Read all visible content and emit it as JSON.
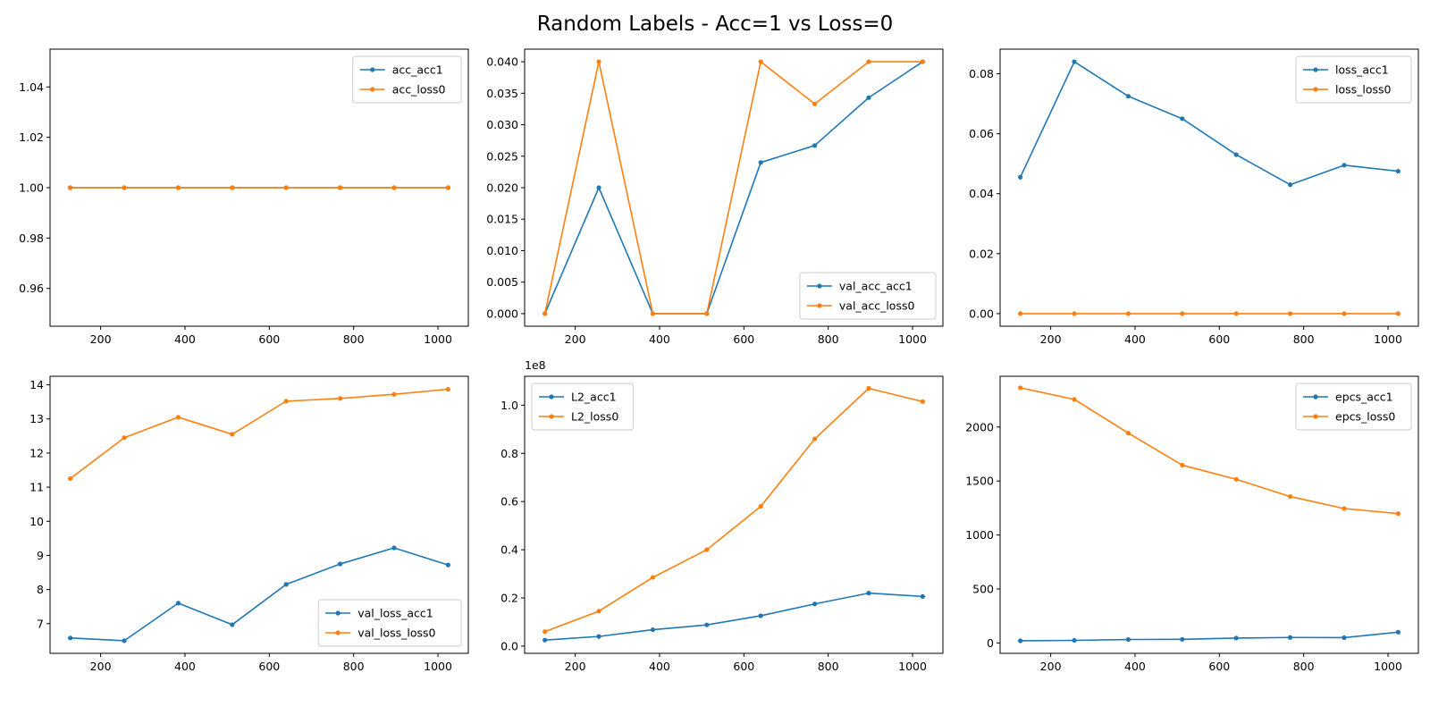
{
  "figure": {
    "title": "Random Labels - Acc=1 vs Loss=0"
  },
  "colors": {
    "acc1": "#1f77b4",
    "loss0": "#ff7f0e",
    "axes": "#000000",
    "legend_border": "#cccccc"
  },
  "chart_data": [
    {
      "id": "acc",
      "type": "line",
      "x": [
        128,
        256,
        384,
        512,
        640,
        768,
        896,
        1024
      ],
      "xlim": [
        80,
        1072
      ],
      "xticks": [
        200,
        400,
        600,
        800,
        1000
      ],
      "xtick_labels": [
        "200",
        "400",
        "600",
        "800",
        "1000"
      ],
      "ylim": [
        0.945,
        1.055
      ],
      "yticks": [
        0.96,
        0.98,
        1.0,
        1.02,
        1.04
      ],
      "ytick_labels": [
        "0.96",
        "0.98",
        "1.00",
        "1.02",
        "1.04"
      ],
      "offset_text": "",
      "legend_position": "top-right",
      "grid": false,
      "series": [
        {
          "name": "acc_acc1",
          "color_key": "acc1",
          "values": [
            1,
            1,
            1,
            1,
            1,
            1,
            1,
            1
          ]
        },
        {
          "name": "acc_loss0",
          "color_key": "loss0",
          "values": [
            1,
            1,
            1,
            1,
            1,
            1,
            1,
            1
          ]
        }
      ]
    },
    {
      "id": "val_acc",
      "type": "line",
      "x": [
        128,
        256,
        384,
        512,
        640,
        768,
        896,
        1024
      ],
      "xlim": [
        80,
        1072
      ],
      "xticks": [
        200,
        400,
        600,
        800,
        1000
      ],
      "xtick_labels": [
        "200",
        "400",
        "600",
        "800",
        "1000"
      ],
      "ylim": [
        -0.002,
        0.042
      ],
      "yticks": [
        0,
        0.005,
        0.01,
        0.015,
        0.02,
        0.025,
        0.03,
        0.035,
        0.04
      ],
      "ytick_labels": [
        "0.000",
        "0.005",
        "0.010",
        "0.015",
        "0.020",
        "0.025",
        "0.030",
        "0.035",
        "0.040"
      ],
      "offset_text": "",
      "legend_position": "bottom-right",
      "grid": false,
      "series": [
        {
          "name": "val_acc_acc1",
          "color_key": "acc1",
          "values": [
            0,
            0.02,
            0,
            0,
            0.024,
            0.0267,
            0.0343,
            0.04
          ]
        },
        {
          "name": "val_acc_loss0",
          "color_key": "loss0",
          "values": [
            0,
            0.04,
            0,
            0,
            0.04,
            0.0333,
            0.04,
            0.04
          ]
        }
      ]
    },
    {
      "id": "loss",
      "type": "line",
      "x": [
        128,
        256,
        384,
        512,
        640,
        768,
        896,
        1024
      ],
      "xlim": [
        80,
        1072
      ],
      "xticks": [
        200,
        400,
        600,
        800,
        1000
      ],
      "xtick_labels": [
        "200",
        "400",
        "600",
        "800",
        "1000"
      ],
      "ylim": [
        -0.0042,
        0.0882
      ],
      "yticks": [
        0,
        0.02,
        0.04,
        0.06,
        0.08
      ],
      "ytick_labels": [
        "0.00",
        "0.02",
        "0.04",
        "0.06",
        "0.08"
      ],
      "offset_text": "",
      "legend_position": "top-right",
      "grid": false,
      "series": [
        {
          "name": "loss_acc1",
          "color_key": "acc1",
          "values": [
            0.0455,
            0.084,
            0.0725,
            0.065,
            0.053,
            0.043,
            0.0495,
            0.0475
          ]
        },
        {
          "name": "loss_loss0",
          "color_key": "loss0",
          "values": [
            0,
            0,
            0,
            0,
            0,
            0,
            0,
            0
          ]
        }
      ]
    },
    {
      "id": "val_loss",
      "type": "line",
      "x": [
        128,
        256,
        384,
        512,
        640,
        768,
        896,
        1024
      ],
      "xlim": [
        80,
        1072
      ],
      "xticks": [
        200,
        400,
        600,
        800,
        1000
      ],
      "xtick_labels": [
        "200",
        "400",
        "600",
        "800",
        "1000"
      ],
      "ylim": [
        6.13,
        14.25
      ],
      "yticks": [
        7,
        8,
        9,
        10,
        11,
        12,
        13,
        14
      ],
      "ytick_labels": [
        "7",
        "8",
        "9",
        "10",
        "11",
        "12",
        "13",
        "14"
      ],
      "offset_text": "",
      "legend_position": "bottom-right",
      "grid": false,
      "series": [
        {
          "name": "val_loss_acc1",
          "color_key": "acc1",
          "values": [
            6.58,
            6.5,
            7.6,
            6.97,
            8.15,
            8.75,
            9.22,
            8.72
          ]
        },
        {
          "name": "val_loss_loss0",
          "color_key": "loss0",
          "values": [
            11.25,
            12.45,
            13.05,
            12.55,
            13.52,
            13.6,
            13.72,
            13.87
          ]
        }
      ]
    },
    {
      "id": "L2",
      "type": "line",
      "x": [
        128,
        256,
        384,
        512,
        640,
        768,
        896,
        1024
      ],
      "xlim": [
        80,
        1072
      ],
      "xticks": [
        200,
        400,
        600,
        800,
        1000
      ],
      "xtick_labels": [
        "200",
        "400",
        "600",
        "800",
        "1000"
      ],
      "ylim": [
        -3000000,
        112000000
      ],
      "yticks": [
        0,
        20000000,
        40000000,
        60000000,
        80000000,
        100000000
      ],
      "ytick_labels": [
        "0.0",
        "0.2",
        "0.4",
        "0.6",
        "0.8",
        "1.0"
      ],
      "offset_text": "1e8",
      "legend_position": "top-left",
      "grid": false,
      "series": [
        {
          "name": "L2_acc1",
          "color_key": "acc1",
          "values": [
            2500000,
            4000000,
            6800000,
            8800000,
            12600000,
            17500000,
            22000000,
            20600000
          ]
        },
        {
          "name": "L2_loss0",
          "color_key": "loss0",
          "values": [
            6000000,
            14500000,
            28500000,
            40000000,
            58000000,
            86000000,
            107000000,
            101500000
          ]
        }
      ]
    },
    {
      "id": "epcs",
      "type": "line",
      "x": [
        128,
        256,
        384,
        512,
        640,
        768,
        896,
        1024
      ],
      "xlim": [
        80,
        1072
      ],
      "xticks": [
        200,
        400,
        600,
        800,
        1000
      ],
      "xtick_labels": [
        "200",
        "400",
        "600",
        "800",
        "1000"
      ],
      "ylim": [
        -96,
        2470
      ],
      "yticks": [
        0,
        500,
        1000,
        1500,
        2000
      ],
      "ytick_labels": [
        "0",
        "500",
        "1000",
        "1500",
        "2000"
      ],
      "offset_text": "",
      "legend_position": "top-right",
      "grid": false,
      "series": [
        {
          "name": "epcs_acc1",
          "color_key": "acc1",
          "values": [
            20,
            24,
            32,
            34,
            45,
            51,
            49,
            100
          ]
        },
        {
          "name": "epcs_loss0",
          "color_key": "loss0",
          "values": [
            2363,
            2256,
            1944,
            1647,
            1516,
            1356,
            1245,
            1198
          ]
        }
      ]
    }
  ]
}
